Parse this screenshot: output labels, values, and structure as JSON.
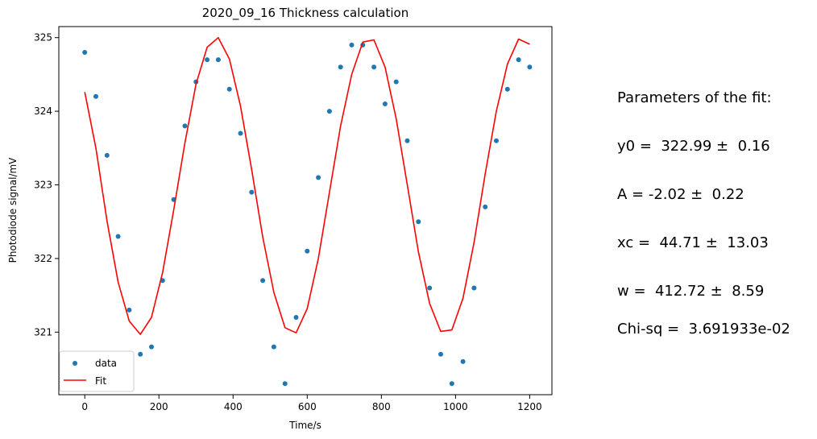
{
  "chart_data": {
    "type": "scatter",
    "title": "2020_09_16 Thickness calculation",
    "xlabel": "Time/s",
    "ylabel": "Photodiode signal/mV",
    "xlim": [
      -70,
      1260
    ],
    "ylim": [
      320.15,
      325.15
    ],
    "xticks": [
      0,
      200,
      400,
      600,
      800,
      1000,
      1200
    ],
    "yticks": [
      321,
      322,
      323,
      324,
      325
    ],
    "grid": false,
    "legend_position": "lower-left",
    "series": [
      {
        "name": "data",
        "kind": "scatter",
        "color": "#1f77b4",
        "x": [
          0,
          30,
          60,
          90,
          120,
          150,
          180,
          210,
          240,
          270,
          300,
          330,
          360,
          390,
          420,
          450,
          480,
          510,
          540,
          570,
          600,
          630,
          660,
          690,
          720,
          750,
          780,
          810,
          840,
          870,
          900,
          930,
          960,
          990,
          1020,
          1050,
          1080,
          1110,
          1140,
          1170,
          1200
        ],
        "y": [
          324.8,
          324.2,
          323.4,
          322.3,
          321.3,
          320.7,
          320.8,
          321.7,
          322.8,
          323.8,
          324.4,
          324.7,
          324.7,
          324.3,
          323.7,
          322.9,
          321.7,
          320.8,
          320.3,
          321.2,
          322.1,
          323.1,
          324.0,
          324.6,
          324.9,
          324.9,
          324.6,
          324.1,
          324.4,
          323.6,
          322.5,
          321.6,
          320.7,
          320.3,
          320.6,
          321.6,
          322.7,
          323.6,
          324.3,
          324.7,
          324.6
        ]
      },
      {
        "name": "Fit",
        "kind": "line",
        "color": "#ff0000",
        "x": [
          0,
          30,
          60,
          90,
          120,
          150,
          180,
          210,
          240,
          270,
          300,
          330,
          360,
          390,
          420,
          450,
          480,
          510,
          540,
          570,
          600,
          630,
          660,
          690,
          720,
          750,
          780,
          810,
          840,
          870,
          900,
          930,
          960,
          990,
          1020,
          1050,
          1080,
          1110,
          1140,
          1170,
          1200
        ],
        "y": [
          324.26,
          323.5,
          322.51,
          321.68,
          321.15,
          320.97,
          321.2,
          321.81,
          322.66,
          323.57,
          324.37,
          324.87,
          325.0,
          324.71,
          324.07,
          323.21,
          322.29,
          321.54,
          321.06,
          320.99,
          321.32,
          322.0,
          322.9,
          323.8,
          324.5,
          324.94,
          324.97,
          324.6,
          323.9,
          323.0,
          322.09,
          321.39,
          321.01,
          321.03,
          321.46,
          322.22,
          323.15,
          324.0,
          324.64,
          324.98,
          324.91
        ]
      }
    ],
    "annotations": {
      "params_heading": "Parameters of the fit:",
      "params_y0": "y0 =  322.99 ±  0.16",
      "params_A": "A = -2.02 ±  0.22",
      "params_xc": "xc =  44.71 ±  13.03",
      "params_w": "w =  412.72 ±  8.59",
      "chisq": "Chi-sq =  3.691933e-02"
    }
  }
}
